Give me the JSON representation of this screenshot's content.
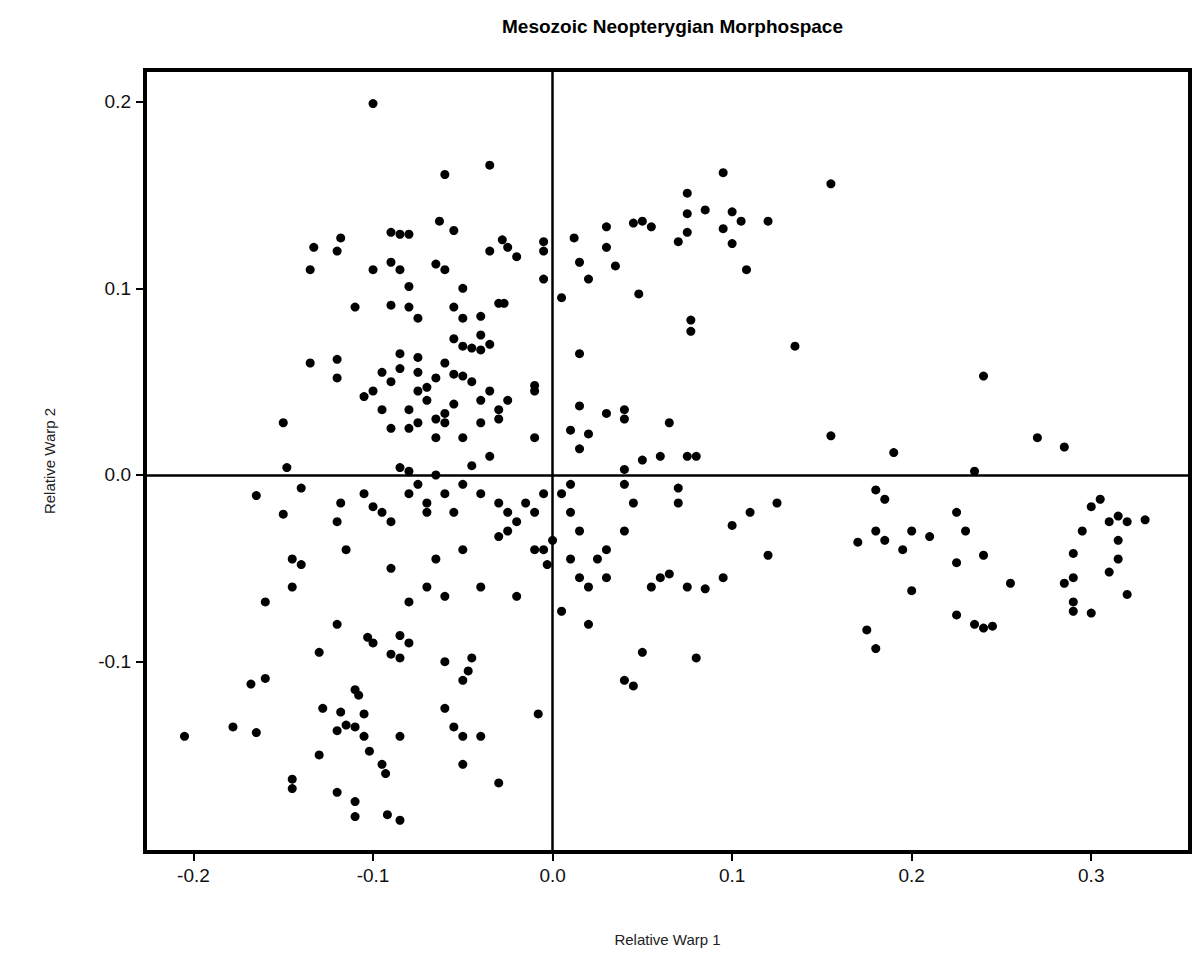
{
  "chart_data": {
    "type": "scatter",
    "title": "Mesozoic Neopterygian Morphospace",
    "x_label": "Relative Warp 1",
    "y_label": "Relative Warp 2",
    "color": "#000000",
    "marker": "circle",
    "grid": false,
    "xlim": [
      -0.227,
      0.355
    ],
    "ylim": [
      -0.202,
      0.217
    ],
    "xticks": [
      -0.2,
      -0.1,
      {
        "value": 0,
        "label": "0.0"
      },
      0.1,
      0.2,
      0.3
    ],
    "yticks": [
      -0.1,
      {
        "value": 0,
        "label": "0.0"
      },
      0.1,
      0.2
    ],
    "x": [
      -0.1,
      -0.035,
      -0.06,
      0.095,
      0.155,
      -0.133,
      -0.118,
      -0.09,
      -0.085,
      -0.08,
      -0.063,
      -0.055,
      -0.035,
      -0.028,
      -0.025,
      -0.02,
      -0.005,
      -0.005,
      -0.005,
      0.005,
      0.012,
      0.015,
      0.02,
      0.03,
      0.03,
      0.035,
      0.045,
      0.05,
      0.055,
      0.048,
      0.07,
      0.075,
      0.075,
      0.075,
      0.085,
      0.095,
      0.1,
      0.105,
      0.1,
      0.108,
      0.12,
      0.077,
      0.077,
      0.135,
      -0.135,
      -0.12,
      -0.11,
      -0.1,
      -0.09,
      -0.085,
      -0.08,
      -0.09,
      -0.08,
      -0.075,
      -0.065,
      -0.06,
      -0.05,
      -0.055,
      -0.05,
      -0.04,
      -0.03,
      -0.027,
      -0.04,
      -0.055,
      -0.06,
      -0.135,
      -0.12,
      -0.12,
      -0.1,
      -0.095,
      -0.09,
      -0.085,
      -0.085,
      -0.075,
      -0.075,
      -0.07,
      -0.065,
      -0.055,
      -0.05,
      -0.05,
      -0.045,
      -0.04,
      -0.035,
      -0.045,
      -0.04,
      -0.035,
      -0.03,
      -0.025,
      -0.03,
      -0.04,
      -0.05,
      -0.055,
      -0.06,
      -0.065,
      -0.07,
      -0.075,
      -0.08,
      -0.08,
      -0.09,
      -0.095,
      -0.105,
      -0.075,
      -0.065,
      -0.06,
      -0.01,
      -0.01,
      -0.01,
      0.015,
      0.015,
      0.01,
      0.015,
      0.02,
      0.03,
      0.04,
      0.04,
      0.065,
      0.06,
      0.05,
      0.04,
      0.075,
      0.08,
      0.155,
      0.24,
      0.27,
      0.285,
      0.19,
      0.235,
      -0.15,
      -0.148,
      -0.14,
      -0.15,
      -0.165,
      -0.118,
      -0.12,
      -0.105,
      -0.1,
      -0.095,
      -0.09,
      -0.085,
      -0.08,
      -0.08,
      -0.075,
      -0.07,
      -0.07,
      -0.065,
      -0.06,
      -0.055,
      -0.05,
      -0.045,
      -0.04,
      -0.035,
      -0.03,
      -0.025,
      -0.02,
      -0.025,
      -0.03,
      -0.015,
      -0.01,
      -0.005,
      -0.005,
      -0.01,
      -0.003,
      0.0,
      0.005,
      0.01,
      0.015,
      0.01,
      0.01,
      0.015,
      0.02,
      0.025,
      0.03,
      0.03,
      0.04,
      0.045,
      0.04,
      0.055,
      0.06,
      0.065,
      0.07,
      0.07,
      0.05,
      0.04,
      0.045,
      0.005,
      0.02,
      -0.008,
      -0.02,
      -0.04,
      -0.05,
      -0.065,
      -0.07,
      -0.08,
      -0.06,
      -0.09,
      -0.115,
      -0.145,
      -0.145,
      -0.14,
      -0.16,
      0.075,
      0.095,
      0.1,
      0.11,
      0.12,
      0.125,
      0.08,
      0.085,
      0.17,
      0.18,
      0.185,
      0.185,
      0.18,
      0.195,
      0.2,
      0.21,
      0.175,
      0.18,
      0.2,
      0.225,
      0.225,
      0.23,
      0.24,
      0.225,
      0.235,
      0.24,
      0.245,
      0.255,
      0.285,
      0.29,
      0.29,
      0.29,
      0.29,
      0.3,
      0.295,
      0.3,
      0.305,
      0.31,
      0.315,
      0.32,
      0.33,
      0.315,
      0.315,
      0.31,
      0.32,
      -0.205,
      -0.178,
      -0.168,
      -0.165,
      -0.16,
      -0.13,
      -0.128,
      -0.13,
      -0.12,
      -0.118,
      -0.12,
      -0.115,
      -0.11,
      -0.108,
      -0.105,
      -0.11,
      -0.105,
      -0.1,
      -0.103,
      -0.102,
      -0.095,
      -0.093,
      -0.092,
      -0.09,
      -0.085,
      -0.085,
      -0.08,
      -0.085,
      -0.085,
      -0.11,
      -0.12,
      -0.145,
      -0.145,
      -0.11,
      -0.06,
      -0.06,
      -0.055,
      -0.05,
      -0.05,
      -0.047,
      -0.045,
      -0.05,
      -0.04,
      -0.03
    ],
    "values": [
      0.199,
      0.166,
      0.161,
      0.162,
      0.156,
      0.122,
      0.127,
      0.13,
      0.129,
      0.129,
      0.136,
      0.131,
      0.12,
      0.126,
      0.122,
      0.117,
      0.125,
      0.12,
      0.105,
      0.095,
      0.127,
      0.114,
      0.105,
      0.122,
      0.133,
      0.112,
      0.135,
      0.136,
      0.133,
      0.097,
      0.125,
      0.13,
      0.14,
      0.151,
      0.142,
      0.132,
      0.141,
      0.136,
      0.124,
      0.11,
      0.136,
      0.083,
      0.077,
      0.069,
      0.11,
      0.12,
      0.09,
      0.11,
      0.114,
      0.11,
      0.101,
      0.091,
      0.09,
      0.084,
      0.113,
      0.11,
      0.1,
      0.09,
      0.084,
      0.085,
      0.092,
      0.092,
      0.075,
      0.073,
      0.06,
      0.06,
      0.062,
      0.052,
      0.045,
      0.055,
      0.05,
      0.065,
      0.057,
      0.063,
      0.055,
      0.047,
      0.052,
      0.054,
      0.053,
      0.069,
      0.068,
      0.067,
      0.07,
      0.05,
      0.04,
      0.045,
      0.035,
      0.04,
      0.03,
      0.028,
      0.02,
      0.038,
      0.033,
      0.03,
      0.04,
      0.045,
      0.035,
      0.025,
      0.025,
      0.035,
      0.042,
      0.028,
      0.02,
      0.028,
      0.048,
      0.045,
      0.02,
      0.065,
      0.037,
      0.024,
      0.014,
      0.022,
      0.033,
      0.035,
      0.03,
      0.028,
      0.01,
      0.008,
      0.003,
      0.01,
      0.01,
      0.021,
      0.053,
      0.02,
      0.015,
      0.012,
      0.002,
      0.028,
      0.004,
      -0.007,
      -0.021,
      -0.011,
      -0.015,
      -0.025,
      -0.01,
      -0.017,
      -0.02,
      -0.025,
      0.004,
      -0.01,
      0.002,
      -0.005,
      -0.015,
      -0.02,
      0.0,
      -0.01,
      -0.02,
      -0.005,
      0.005,
      -0.01,
      0.01,
      -0.015,
      -0.02,
      -0.025,
      -0.03,
      -0.033,
      -0.015,
      -0.02,
      -0.01,
      -0.04,
      -0.04,
      -0.048,
      -0.035,
      -0.01,
      -0.005,
      -0.03,
      -0.02,
      -0.045,
      -0.055,
      -0.06,
      -0.045,
      -0.055,
      -0.04,
      -0.03,
      -0.015,
      -0.005,
      -0.06,
      -0.055,
      -0.053,
      -0.015,
      -0.007,
      -0.095,
      -0.11,
      -0.113,
      -0.073,
      -0.08,
      -0.128,
      -0.065,
      -0.06,
      -0.04,
      -0.045,
      -0.06,
      -0.068,
      -0.065,
      -0.05,
      -0.04,
      -0.045,
      -0.06,
      -0.048,
      -0.068,
      -0.06,
      -0.055,
      -0.027,
      -0.02,
      -0.043,
      -0.015,
      -0.098,
      -0.061,
      -0.036,
      -0.008,
      -0.013,
      -0.035,
      -0.03,
      -0.04,
      -0.03,
      -0.033,
      -0.083,
      -0.093,
      -0.062,
      -0.02,
      -0.047,
      -0.03,
      -0.043,
      -0.075,
      -0.08,
      -0.082,
      -0.081,
      -0.058,
      -0.058,
      -0.042,
      -0.055,
      -0.068,
      -0.073,
      -0.074,
      -0.03,
      -0.017,
      -0.013,
      -0.025,
      -0.022,
      -0.025,
      -0.024,
      -0.035,
      -0.045,
      -0.052,
      -0.064,
      -0.14,
      -0.135,
      -0.112,
      -0.138,
      -0.109,
      -0.095,
      -0.125,
      -0.15,
      -0.08,
      -0.127,
      -0.137,
      -0.134,
      -0.115,
      -0.118,
      -0.128,
      -0.135,
      -0.14,
      -0.09,
      -0.087,
      -0.148,
      -0.155,
      -0.16,
      -0.182,
      -0.096,
      -0.086,
      -0.098,
      -0.09,
      -0.14,
      -0.185,
      -0.175,
      -0.17,
      -0.168,
      -0.163,
      -0.183,
      -0.1,
      -0.125,
      -0.135,
      -0.14,
      -0.11,
      -0.105,
      -0.098,
      -0.155,
      -0.14,
      -0.165
    ]
  }
}
